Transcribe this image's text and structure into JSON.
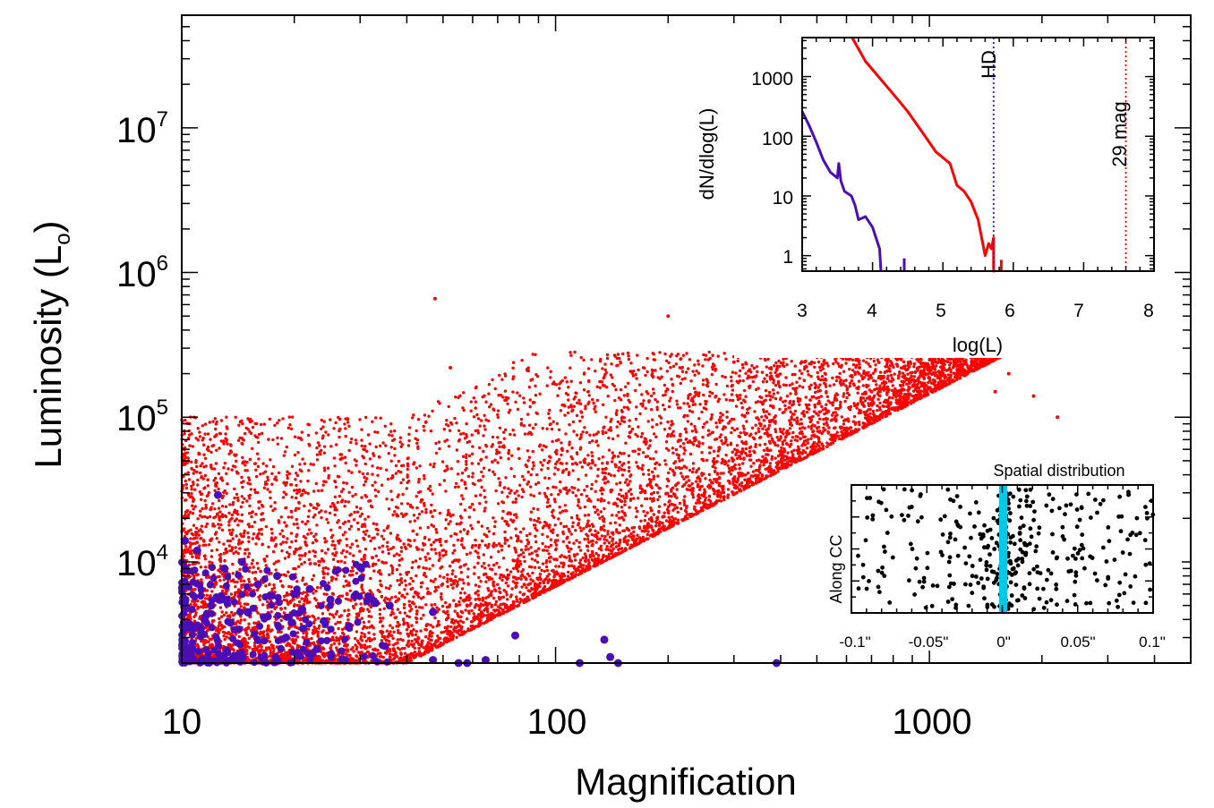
{
  "chart_data": [
    {
      "id": "main",
      "type": "scatter",
      "title": "",
      "xlabel": "Magnification",
      "ylabel": "Luminosity (L",
      "ylabel_subscript": "o",
      "ylabel_close": ")",
      "xscale": "log",
      "yscale": "log",
      "xlim": [
        10,
        5000
      ],
      "ylim": [
        2000,
        60000000
      ],
      "x_tick_labels": [
        "10",
        "100",
        "1000"
      ],
      "y_tick_labels": [
        {
          "base": "10",
          "exp": "4"
        },
        {
          "base": "10",
          "exp": "5"
        },
        {
          "base": "10",
          "exp": "6"
        },
        {
          "base": "10",
          "exp": "7"
        }
      ],
      "series": [
        {
          "color": "#ff0000",
          "marker": "small-dot",
          "description_count": "dense cloud of several thousand points filling the triangular region above the line L ≈ 2000·(M/40)^1.33 and below about 10^5.3",
          "x": [
            47.6,
            52.3,
            200,
            380,
            820,
            1630,
            1900,
            2200,
            300,
            650,
            700,
            1500
          ],
          "y": [
            660000,
            220000,
            500000,
            300000,
            250000,
            200000,
            140000,
            100000,
            240000,
            220000,
            150000,
            150000
          ]
        },
        {
          "color": "#4b0db5",
          "marker": "filled-circle",
          "x": [
            12.5,
            10.2,
            11,
            13,
            14.5,
            16,
            18,
            20,
            22,
            25,
            29,
            33,
            12,
            15,
            11.5,
            10.8,
            13.5,
            17,
            21,
            24,
            28,
            47,
            55,
            58,
            78,
            116,
            135,
            140,
            147,
            390,
            30,
            36,
            47,
            65,
            19,
            23
          ],
          "y": [
            29000,
            14000,
            12000,
            9000,
            10000,
            7000,
            8000,
            6000,
            6500,
            5500,
            5800,
            5200,
            5000,
            4500,
            4000,
            3500,
            3800,
            4200,
            4700,
            3900,
            3600,
            4500,
            2000,
            2000,
            3100,
            2000,
            2900,
            2200,
            2000,
            2000,
            9200,
            5000,
            2100,
            2100,
            3000,
            2500
          ]
        }
      ]
    },
    {
      "id": "histogram-inset",
      "type": "line",
      "title": "",
      "xlabel": "log(L)",
      "ylabel": "dN/dlog(L)",
      "xscale": "linear",
      "yscale": "log",
      "xlim": [
        3,
        8
      ],
      "ylim": [
        0.55,
        4500
      ],
      "x_tick_labels": [
        "3",
        "4",
        "5",
        "6",
        "7",
        "8"
      ],
      "y_tick_labels": [
        "1",
        "10",
        "100",
        "1000"
      ],
      "series": [
        {
          "color": "#ff0000",
          "x": [
            3.71,
            3.9,
            4.1,
            4.3,
            4.5,
            4.7,
            4.9,
            5.1,
            5.2,
            5.3,
            5.4,
            5.5,
            5.6,
            5.65,
            5.69,
            5.72,
            5.72,
            5.74
          ],
          "y": [
            4500,
            1800,
            950,
            500,
            260,
            120,
            55,
            35,
            15,
            12,
            8,
            4,
            1,
            1.6,
            1.3,
            2,
            0.55,
            0.55
          ]
        },
        {
          "color": "#ff0000",
          "x": [
            5.83,
            5.83
          ],
          "y": [
            0.55,
            0.85
          ]
        },
        {
          "color": "#4b0db5",
          "x": [
            3.0,
            3.1,
            3.2,
            3.3,
            3.4,
            3.5,
            3.52,
            3.55,
            3.6,
            3.7,
            3.75,
            3.8,
            3.9,
            4.0,
            4.1,
            4.12,
            4.12
          ],
          "y": [
            260,
            150,
            80,
            40,
            25,
            20,
            35,
            18,
            12,
            10,
            7,
            4,
            4.5,
            3,
            1.3,
            0.55,
            0.55
          ]
        },
        {
          "color": "#4b0db5",
          "x": [
            4.45,
            4.45
          ],
          "y": [
            0.55,
            0.9
          ]
        }
      ],
      "annotations": [
        {
          "text": "HD",
          "x": 5.72,
          "color": "#4b0db5",
          "line": "dotted"
        },
        {
          "text": "29 mag",
          "x": 7.6,
          "color": "#ff0000",
          "line": "dotted"
        }
      ]
    },
    {
      "id": "spatial-inset",
      "type": "scatter",
      "title": "Spatial distribution",
      "xlabel": "",
      "ylabel": "Along CC",
      "xlim": [
        -0.1,
        0.1
      ],
      "x_tick_labels": [
        "-0.1\"",
        "-0.05\"",
        "0\"",
        "0.05\"",
        "0.1\""
      ],
      "critical_curve_x": 0.002,
      "critical_curve_color": "#00c8e6",
      "point_color": "#000000",
      "x_points": [
        -0.095,
        -0.09,
        -0.085,
        -0.08,
        -0.075,
        -0.07,
        -0.065,
        -0.06,
        -0.055,
        -0.05,
        -0.045,
        -0.04,
        -0.035,
        -0.03,
        -0.025,
        -0.02,
        -0.015,
        -0.01,
        -0.008,
        -0.006,
        -0.004,
        -0.002,
        0.004,
        0.006,
        0.008,
        0.01,
        0.015,
        0.02,
        0.025,
        0.03,
        0.035,
        0.04,
        0.045,
        0.05,
        0.055,
        0.06,
        0.065,
        0.07,
        0.075,
        0.08,
        0.085,
        0.09,
        0.095
      ]
    }
  ]
}
